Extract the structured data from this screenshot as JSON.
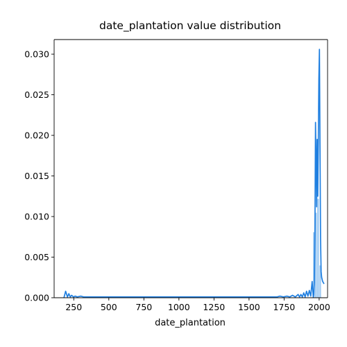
{
  "chart_data": {
    "type": "area",
    "title": "date_plantation value distribution",
    "xlabel": "date_plantation",
    "ylabel": "",
    "xlim": [
      110,
      2060
    ],
    "ylim": [
      0,
      0.0318
    ],
    "x_ticks": [
      250,
      500,
      750,
      1000,
      1250,
      1500,
      1750,
      2000
    ],
    "y_ticks": [
      0.0,
      0.005,
      0.01,
      0.015,
      0.02,
      0.025,
      0.03
    ],
    "x_tick_labels": [
      "250",
      "500",
      "750",
      "1000",
      "1250",
      "1500",
      "1750",
      "2000"
    ],
    "y_tick_labels": [
      "0.000",
      "0.005",
      "0.010",
      "0.015",
      "0.020",
      "0.025",
      "0.030"
    ],
    "color": "#1f7fe0",
    "fill_color": "#9fcaf2",
    "histogram_bins": [
      {
        "x0": 1955,
        "x1": 1970,
        "value": 0.0081
      },
      {
        "x0": 1970,
        "x1": 1985,
        "value": 0.0105
      },
      {
        "x0": 1985,
        "x1": 2000,
        "value": 0.0122
      },
      {
        "x0": 2000,
        "x1": 2015,
        "value": 0.004
      }
    ],
    "kde_series": {
      "x": [
        180,
        192,
        205,
        215,
        225,
        235,
        248,
        260,
        275,
        300,
        320,
        350,
        380,
        420,
        460,
        500,
        550,
        600,
        650,
        700,
        750,
        800,
        850,
        900,
        950,
        1000,
        1050,
        1100,
        1150,
        1200,
        1250,
        1300,
        1350,
        1400,
        1450,
        1500,
        1550,
        1600,
        1650,
        1700,
        1720,
        1745,
        1770,
        1790,
        1810,
        1830,
        1850,
        1860,
        1870,
        1880,
        1890,
        1900,
        1910,
        1920,
        1930,
        1940,
        1950,
        1958,
        1962,
        1966,
        1970,
        1974,
        1978,
        1982,
        1986,
        1990,
        1994,
        1998,
        2002,
        2006,
        2010,
        2014,
        2018,
        2025,
        2035
      ],
      "y": [
        0.0,
        0.0008,
        0.0001,
        0.0005,
        0.0001,
        0.0003,
        0.0001,
        0.0002,
        0.0001,
        0.0002,
        0.0001,
        0.0001,
        0.0001,
        0.0001,
        0.0001,
        0.0001,
        0.0001,
        0.0001,
        0.0001,
        0.0001,
        0.0001,
        0.0001,
        0.0001,
        0.0001,
        0.0001,
        0.0001,
        0.0001,
        0.0001,
        0.0001,
        0.0001,
        0.0001,
        0.0001,
        0.0001,
        0.0001,
        0.0001,
        0.0001,
        0.0001,
        0.0001,
        0.0001,
        0.0001,
        0.0002,
        0.0001,
        0.0002,
        0.0001,
        0.0003,
        0.0001,
        0.0004,
        0.0001,
        0.0004,
        0.0001,
        0.0006,
        0.0001,
        0.0008,
        0.0002,
        0.0009,
        0.0002,
        0.002,
        0.0001,
        0.0004,
        0.0019,
        0.0085,
        0.0216,
        0.017,
        0.0112,
        0.0195,
        0.0125,
        0.0192,
        0.027,
        0.0306,
        0.0188,
        0.0073,
        0.0032,
        0.0025,
        0.002,
        0.0017
      ]
    }
  }
}
